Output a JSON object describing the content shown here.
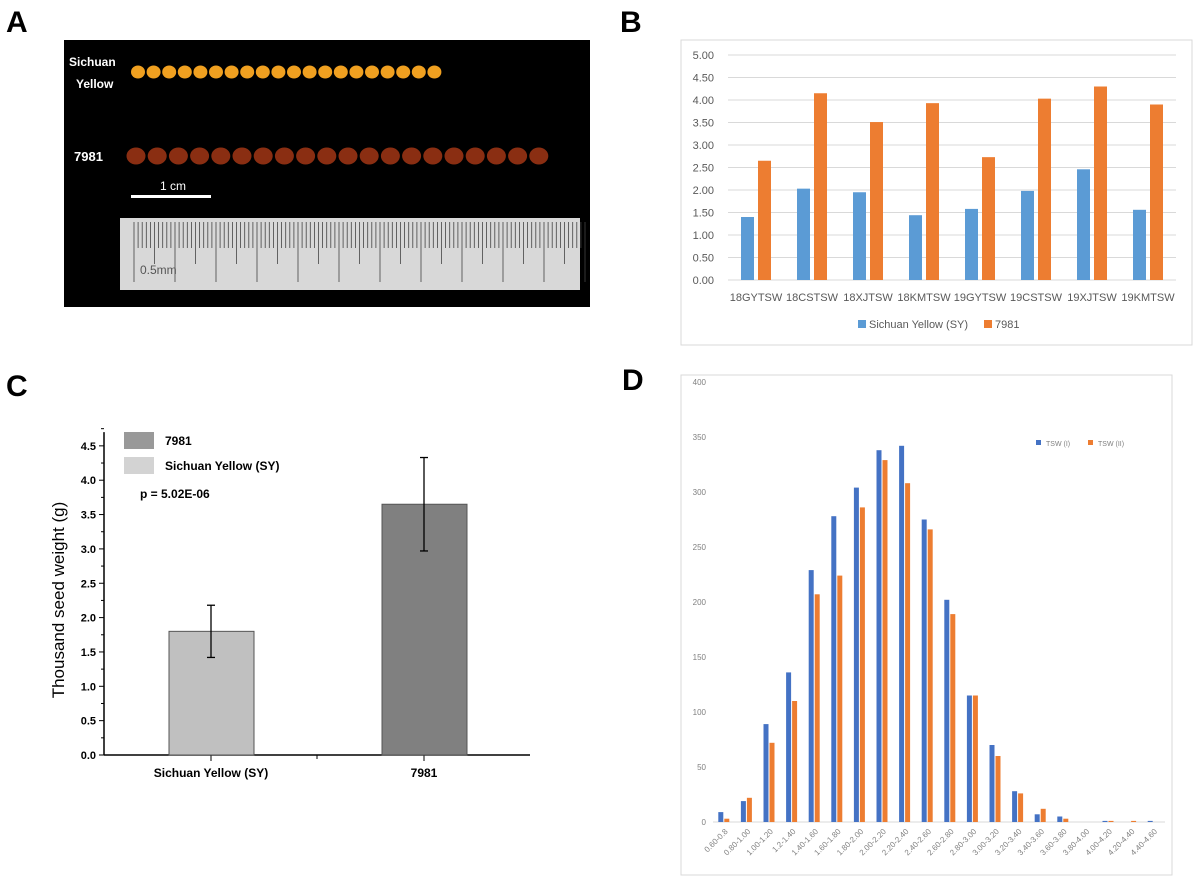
{
  "panel_labels": [
    "A",
    "B",
    "C",
    "D"
  ],
  "panel_a": {
    "row1_label_line1": "Sichuan",
    "row1_label_line2": "Yellow",
    "row2_label": "7981",
    "scale_bar_label": "1 cm",
    "ruler_label": "0.5mm",
    "seed_colors": {
      "sichuan_yellow": "#f0a020",
      "7981": "#8a2e12"
    }
  },
  "chart_data": [
    {
      "panel": "B",
      "type": "bar",
      "categories": [
        "18GYTSW",
        "18CSTSW",
        "18XJTSW",
        "18KMTSW",
        "19GYTSW",
        "19CSTSW",
        "19XJTSW",
        "19KMTSW"
      ],
      "series": [
        {
          "name": "Sichuan Yellow (SY)",
          "color": "#5b9bd5",
          "values": [
            1.4,
            2.03,
            1.95,
            1.44,
            1.58,
            1.98,
            2.46,
            1.56
          ]
        },
        {
          "name": "7981",
          "color": "#ed7d31",
          "values": [
            2.65,
            4.15,
            3.51,
            3.93,
            2.73,
            4.03,
            4.3,
            3.9
          ]
        }
      ],
      "ylim": [
        0,
        5
      ],
      "yticks": [
        "0.00",
        "0.50",
        "1.00",
        "1.50",
        "2.00",
        "2.50",
        "3.00",
        "3.50",
        "4.00",
        "4.50",
        "5.00"
      ],
      "grid": true,
      "legend": "bottom"
    },
    {
      "panel": "C",
      "type": "bar",
      "categories": [
        "Sichuan Yellow (SY)",
        "7981"
      ],
      "values": [
        1.8,
        3.65
      ],
      "error": [
        0.38,
        0.68
      ],
      "colors": [
        "#c0c0c0",
        "#808080"
      ],
      "legend_entries": [
        {
          "name": "7981",
          "color": "#999999"
        },
        {
          "name": "Sichuan Yellow (SY)",
          "color": "#d3d3d3"
        }
      ],
      "annotation": "p = 5.02E-06",
      "ylabel": "Thousand seed weight (g)",
      "ylim": [
        0,
        4.7
      ],
      "yticks": [
        "0.0",
        "0.5",
        "1.0",
        "1.5",
        "2.0",
        "2.5",
        "3.0",
        "3.5",
        "4.0",
        "4.5"
      ],
      "grid": false,
      "legend": "top-left"
    },
    {
      "panel": "D",
      "type": "bar",
      "categories": [
        "0.60-0.8",
        "0.80-1.00",
        "1.00-1.20",
        "1.2-1.40",
        "1.40-1.60",
        "1.60-1.80",
        "1.80-2.00",
        "2.00-2.20",
        "2.20-2.40",
        "2.40-2.60",
        "2.60-2.80",
        "2.80-3.00",
        "3.00-3.20",
        "3.20-3.40",
        "3.40-3.60",
        "3.60-3.80",
        "3.80-4.00",
        "4.00-4.20",
        "4.20-4.40",
        "4.40-4.60"
      ],
      "series": [
        {
          "name": "TSW (I)",
          "color": "#4472c4",
          "values": [
            9,
            19,
            89,
            136,
            229,
            278,
            304,
            338,
            342,
            275,
            202,
            115,
            70,
            28,
            7,
            5,
            0,
            1,
            0,
            1
          ]
        },
        {
          "name": "TSW (II)",
          "color": "#ed7d31",
          "values": [
            3,
            22,
            72,
            110,
            207,
            224,
            286,
            329,
            308,
            266,
            189,
            115,
            60,
            26,
            12,
            3,
            0,
            1,
            1,
            0
          ]
        }
      ],
      "ylim": [
        0,
        400
      ],
      "yticks": [
        "0",
        "50",
        "100",
        "150",
        "200",
        "250",
        "300",
        "350",
        "400"
      ],
      "grid": false,
      "legend": "top-right"
    }
  ]
}
